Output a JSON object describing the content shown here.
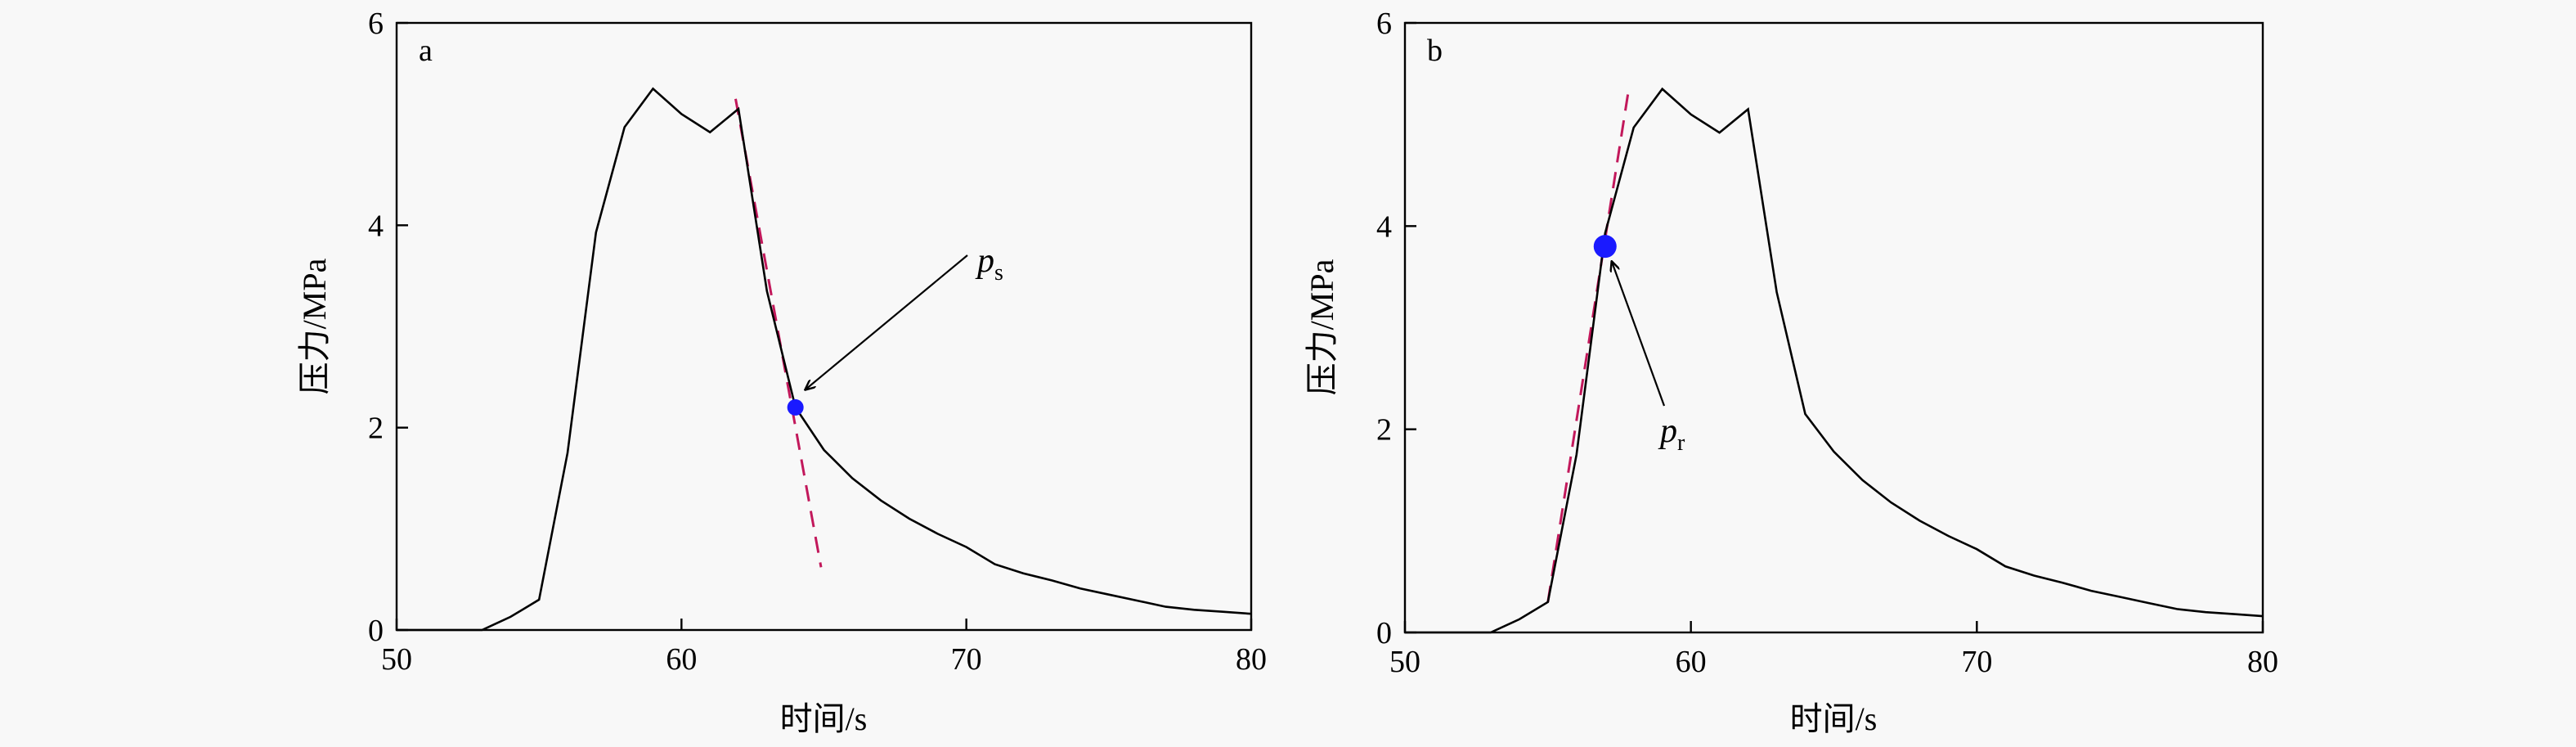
{
  "chart_data": [
    {
      "type": "line",
      "panel_label": "a",
      "xlabel": "时间/s",
      "ylabel": "压力/MPa",
      "xlim": [
        50,
        80
      ],
      "ylim": [
        0,
        6
      ],
      "xticks": [
        50,
        60,
        70,
        80
      ],
      "yticks": [
        0,
        2,
        4,
        6
      ],
      "grid": false,
      "series": [
        {
          "x": [
            50,
            53,
            54,
            55,
            56,
            57,
            58,
            59,
            60,
            61,
            62,
            63,
            64,
            65,
            66,
            67,
            68,
            69,
            70,
            71,
            72,
            73,
            74,
            75,
            76,
            77,
            78,
            79,
            80
          ],
          "values": [
            0,
            0,
            0.13,
            0.3,
            1.75,
            3.93,
            4.97,
            5.35,
            5.1,
            4.92,
            5.15,
            3.35,
            2.2,
            1.78,
            1.5,
            1.28,
            1.1,
            0.95,
            0.82,
            0.65,
            0.56,
            0.49,
            0.41,
            0.35,
            0.29,
            0.23,
            0.2,
            0.18,
            0.16
          ]
        }
      ],
      "tangent_line": {
        "x": [
          61.9,
          64.9
        ],
        "y": [
          5.25,
          0.62
        ],
        "style": "dashed",
        "color": "#c2185b"
      },
      "marker": {
        "x": 64,
        "y": 2.2,
        "color": "#1a1aff"
      },
      "annotation": {
        "base": "p",
        "sub": "s"
      }
    },
    {
      "type": "line",
      "panel_label": "b",
      "xlabel": "时间/s",
      "ylabel": "压力/MPa",
      "xlim": [
        50,
        80
      ],
      "ylim": [
        0,
        6
      ],
      "xticks": [
        50,
        60,
        70,
        80
      ],
      "yticks": [
        0,
        2,
        4,
        6
      ],
      "grid": false,
      "series": [
        {
          "x": [
            50,
            53,
            54,
            55,
            56,
            57,
            58,
            59,
            60,
            61,
            62,
            63,
            64,
            65,
            66,
            67,
            68,
            69,
            70,
            71,
            72,
            73,
            74,
            75,
            76,
            77,
            78,
            79,
            80
          ],
          "values": [
            0,
            0,
            0.13,
            0.3,
            1.75,
            3.93,
            4.97,
            5.35,
            5.1,
            4.92,
            5.15,
            3.35,
            2.15,
            1.78,
            1.5,
            1.28,
            1.1,
            0.95,
            0.82,
            0.65,
            0.56,
            0.49,
            0.41,
            0.35,
            0.29,
            0.23,
            0.2,
            0.18,
            0.16
          ]
        }
      ],
      "tangent_line": {
        "x": [
          55,
          57.8
        ],
        "y": [
          0.3,
          5.3
        ],
        "style": "dashed",
        "color": "#c2185b"
      },
      "marker": {
        "x": 57,
        "y": 3.8,
        "color": "#1a1aff"
      },
      "annotation": {
        "base": "p",
        "sub": "r"
      }
    }
  ]
}
